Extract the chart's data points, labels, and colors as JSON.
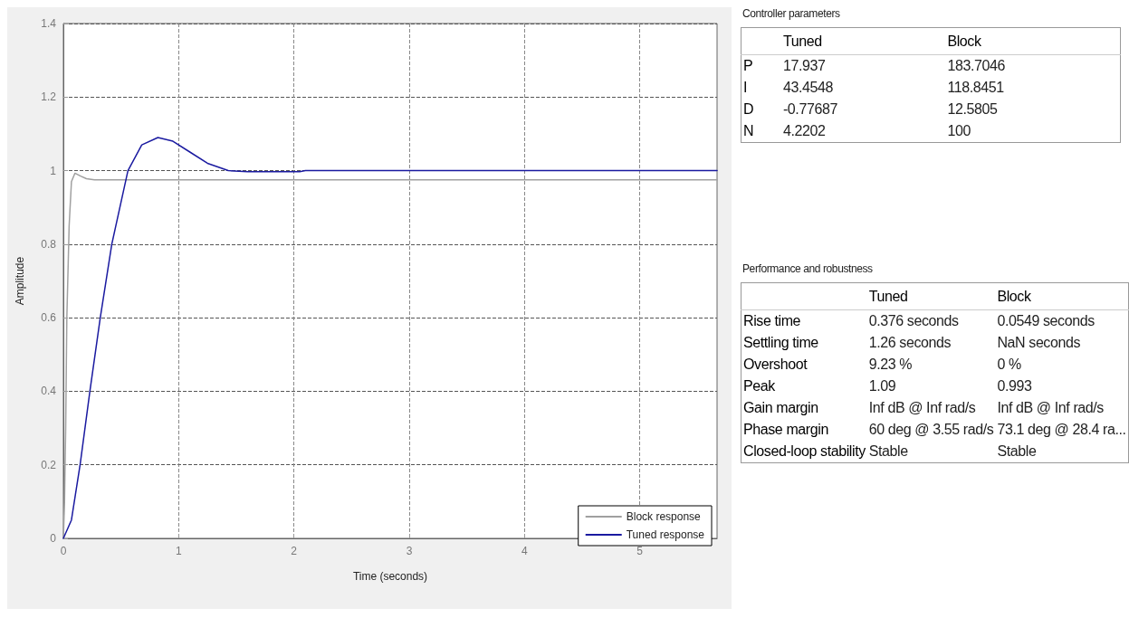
{
  "chart_data": [
    {
      "type": "line",
      "xlabel": "Time (seconds)",
      "ylabel": "Amplitude",
      "xlim": [
        0,
        5.67
      ],
      "xticks": [
        0,
        1,
        2,
        3,
        4,
        5
      ],
      "ylim": [
        0,
        1.4
      ],
      "yticks": [
        0,
        0.2,
        0.4,
        0.6,
        0.8,
        1,
        1.2,
        1.4
      ],
      "grid": true,
      "legend": "bottom right",
      "marker": "none",
      "line_style": "solid",
      "series": [
        {
          "name": "Block response",
          "color": "#a0a0a0",
          "x": [
            0,
            0.01,
            0.02,
            0.03,
            0.05,
            0.07,
            0.1,
            0.15,
            0.2,
            0.27,
            5.67
          ],
          "values": [
            0,
            0.1,
            0.3,
            0.6,
            0.85,
            0.97,
            0.993,
            0.985,
            0.978,
            0.975,
            0.975
          ]
        },
        {
          "name": "Tuned response",
          "color": "#1a1aa0",
          "x": [
            0,
            0.07,
            0.145,
            0.23,
            0.32,
            0.42,
            0.56,
            0.68,
            0.82,
            0.95,
            1.1,
            1.25,
            1.43,
            1.6,
            2.05,
            2.1,
            5.67
          ],
          "values": [
            0,
            0.05,
            0.2,
            0.4,
            0.6,
            0.8,
            1.0,
            1.07,
            1.09,
            1.08,
            1.05,
            1.02,
            1.0,
            0.997,
            0.997,
            1.0,
            1.0
          ]
        }
      ]
    },
    {
      "type": "other",
      "title": "Controller parameters",
      "categories": [
        "Tuned",
        "Block"
      ],
      "y_categories": [
        "P",
        "I",
        "D",
        "N"
      ],
      "cell_labels": [
        [
          "17.937",
          "183.7046"
        ],
        [
          "43.4548",
          "118.8451"
        ],
        [
          "-0.77687",
          "12.5805"
        ],
        [
          "4.2202",
          "100"
        ]
      ]
    },
    {
      "type": "other",
      "title": "Performance and robustness",
      "categories": [
        "Tuned",
        "Block"
      ],
      "y_categories": [
        "Rise time",
        "Settling time",
        "Overshoot",
        "Peak",
        "Gain margin",
        "Phase margin",
        "Closed-loop stability"
      ],
      "cell_labels": [
        [
          "0.376 seconds",
          "0.0549 seconds"
        ],
        [
          "1.26 seconds",
          "NaN seconds"
        ],
        [
          "9.23 %",
          "0 %"
        ],
        [
          "1.09",
          "0.993"
        ],
        [
          "Inf dB @ Inf rad/s",
          "Inf dB @ Inf rad/s"
        ],
        [
          "60 deg @ 3.55 rad/s",
          "73.1 deg @ 28.4 ra..."
        ],
        [
          "Stable",
          "Stable"
        ]
      ]
    }
  ]
}
